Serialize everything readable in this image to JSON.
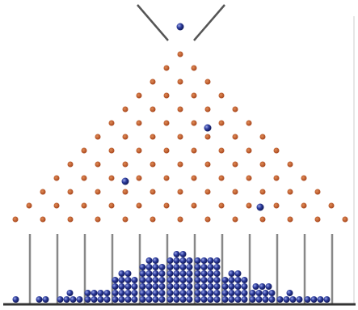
{
  "bins": {
    "counts": [
      1,
      2,
      5,
      8,
      18,
      26,
      30,
      28,
      18,
      11,
      5,
      4,
      0
    ]
  }
}
